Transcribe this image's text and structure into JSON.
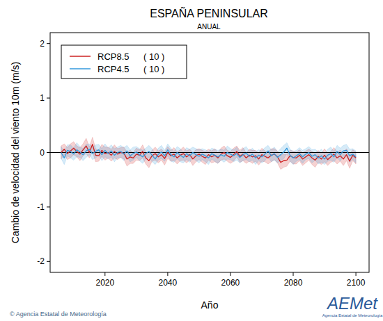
{
  "chart_data": {
    "type": "line",
    "title": "ESPAÑA PENINSULAR",
    "subtitle": "ANUAL",
    "x_label": "Año",
    "y_label": "Cambio de velocidad del viento 10m (m/s)",
    "annotations": [
      "© Agencia Estatal de Meteorología",
      "AEMet",
      "Agencia Estatal de Meteorología"
    ],
    "legend": "top-left",
    "hline": 0,
    "xlim": [
      2002.5,
      2104.2
    ],
    "ylim": [
      -2.2,
      2.2
    ],
    "xticks": [
      2020,
      2040,
      2060,
      2080,
      2100
    ],
    "yticks": [
      -2,
      -1,
      0,
      1,
      2
    ],
    "x": [
      2006,
      2007,
      2008,
      2009,
      2010,
      2011,
      2012,
      2013,
      2014,
      2015,
      2016,
      2017,
      2018,
      2019,
      2020,
      2021,
      2022,
      2023,
      2024,
      2025,
      2026,
      2027,
      2028,
      2029,
      2030,
      2031,
      2032,
      2033,
      2034,
      2035,
      2036,
      2037,
      2038,
      2039,
      2040,
      2041,
      2042,
      2043,
      2044,
      2045,
      2046,
      2047,
      2048,
      2049,
      2050,
      2051,
      2052,
      2053,
      2054,
      2055,
      2056,
      2057,
      2058,
      2059,
      2060,
      2061,
      2062,
      2063,
      2064,
      2065,
      2066,
      2067,
      2068,
      2069,
      2070,
      2071,
      2072,
      2073,
      2074,
      2075,
      2076,
      2077,
      2078,
      2079,
      2080,
      2081,
      2082,
      2083,
      2084,
      2085,
      2086,
      2087,
      2088,
      2089,
      2090,
      2091,
      2092,
      2093,
      2094,
      2095,
      2096,
      2097,
      2098,
      2099,
      2100
    ],
    "series": [
      {
        "name": "RCP8.5",
        "label": "( 10 )",
        "color": "#cc2020",
        "values": [
          0.0,
          0.06,
          -0.02,
          0.03,
          0.08,
          0.02,
          -0.03,
          0.05,
          0.12,
          0.0,
          0.15,
          -0.05,
          -0.06,
          0.04,
          -0.02,
          0.0,
          -0.05,
          0.02,
          -0.03,
          0.0,
          -0.01,
          -0.12,
          -0.08,
          -0.1,
          -0.03,
          -0.05,
          0.02,
          -0.1,
          -0.15,
          -0.06,
          -0.02,
          -0.08,
          -0.04,
          -0.11,
          0.0,
          -0.06,
          -0.03,
          -0.1,
          -0.05,
          -0.02,
          -0.08,
          -0.04,
          -0.12,
          -0.06,
          -0.03,
          -0.07,
          -0.1,
          -0.04,
          -0.08,
          -0.05,
          -0.1,
          -0.03,
          0.0,
          -0.06,
          -0.09,
          -0.04,
          0.02,
          -0.07,
          -0.03,
          -0.1,
          -0.05,
          -0.08,
          -0.06,
          -0.12,
          -0.04,
          -0.07,
          -0.1,
          -0.05,
          -0.03,
          -0.08,
          -0.18,
          -0.15,
          -0.14,
          -0.06,
          -0.09,
          -0.1,
          -0.05,
          -0.12,
          -0.08,
          -0.04,
          -0.1,
          -0.14,
          -0.07,
          -0.12,
          -0.05,
          -0.13,
          -0.08,
          -0.03,
          -0.1,
          -0.06,
          -0.12,
          -0.04,
          -0.16,
          -0.05,
          -0.1
        ],
        "error": [
          0.12,
          0.1,
          0.11,
          0.13,
          0.12,
          0.1,
          0.12,
          0.11,
          0.14,
          0.1,
          0.13,
          0.12,
          0.1,
          0.11,
          0.12,
          0.1,
          0.11,
          0.12,
          0.1,
          0.09,
          0.11,
          0.13,
          0.12,
          0.1,
          0.11,
          0.1,
          0.12,
          0.11,
          0.13,
          0.1,
          0.12,
          0.11,
          0.1,
          0.12,
          0.11,
          0.1,
          0.12,
          0.11,
          0.1,
          0.12,
          0.11,
          0.1,
          0.12,
          0.11,
          0.1,
          0.11,
          0.12,
          0.1,
          0.11,
          0.12,
          0.1,
          0.11,
          0.12,
          0.1,
          0.11,
          0.12,
          0.1,
          0.11,
          0.12,
          0.1,
          0.11,
          0.12,
          0.1,
          0.11,
          0.12,
          0.1,
          0.11,
          0.12,
          0.1,
          0.11,
          0.13,
          0.12,
          0.11,
          0.1,
          0.12,
          0.11,
          0.1,
          0.12,
          0.11,
          0.1,
          0.12,
          0.13,
          0.11,
          0.1,
          0.12,
          0.11,
          0.1,
          0.12,
          0.11,
          0.1,
          0.12,
          0.11,
          0.13,
          0.1,
          0.11
        ]
      },
      {
        "name": "RCP4.5",
        "label": "( 10 )",
        "color": "#3399dd",
        "values": [
          0.0,
          -0.1,
          0.04,
          0.02,
          -0.03,
          0.05,
          0.01,
          -0.04,
          0.03,
          0.06,
          -0.02,
          0.02,
          0.05,
          -0.04,
          0.04,
          -0.02,
          0.03,
          -0.05,
          0.0,
          0.02,
          -0.03,
          0.03,
          -0.06,
          -0.02,
          0.01,
          -0.04,
          -0.08,
          -0.02,
          0.02,
          -0.05,
          -0.12,
          -0.03,
          0.01,
          -0.06,
          0.05,
          -0.04,
          -0.08,
          0.0,
          -0.05,
          -0.09,
          -0.02,
          -0.06,
          0.0,
          -0.04,
          -0.07,
          -0.03,
          -0.06,
          -0.1,
          -0.02,
          -0.05,
          -0.08,
          -0.04,
          -0.07,
          0.0,
          -0.03,
          -0.06,
          -0.02,
          -0.09,
          -0.04,
          -0.01,
          -0.07,
          -0.03,
          -0.1,
          -0.05,
          -0.08,
          -0.03,
          0.03,
          -0.06,
          -0.02,
          -0.09,
          -0.04,
          0.01,
          0.08,
          -0.05,
          -0.1,
          -0.06,
          -0.02,
          -0.08,
          -0.03,
          0.0,
          -0.07,
          -0.04,
          -0.1,
          -0.06,
          -0.12,
          -0.05,
          -0.02,
          -0.08,
          0.02,
          -0.04,
          0.03,
          0.04,
          -0.06,
          -0.03,
          -0.08
        ],
        "error": [
          0.11,
          0.12,
          0.1,
          0.12,
          0.11,
          0.13,
          0.1,
          0.11,
          0.12,
          0.1,
          0.11,
          0.12,
          0.1,
          0.11,
          0.12,
          0.1,
          0.11,
          0.12,
          0.1,
          0.11,
          0.12,
          0.1,
          0.11,
          0.12,
          0.1,
          0.11,
          0.12,
          0.1,
          0.11,
          0.12,
          0.1,
          0.11,
          0.12,
          0.1,
          0.11,
          0.12,
          0.1,
          0.11,
          0.12,
          0.1,
          0.11,
          0.12,
          0.1,
          0.11,
          0.12,
          0.1,
          0.11,
          0.12,
          0.1,
          0.11,
          0.12,
          0.1,
          0.11,
          0.12,
          0.1,
          0.11,
          0.12,
          0.1,
          0.11,
          0.12,
          0.1,
          0.11,
          0.12,
          0.1,
          0.11,
          0.12,
          0.1,
          0.11,
          0.12,
          0.1,
          0.11,
          0.12,
          0.1,
          0.11,
          0.12,
          0.1,
          0.11,
          0.12,
          0.1,
          0.11,
          0.12,
          0.1,
          0.11,
          0.12,
          0.1,
          0.11,
          0.12,
          0.1,
          0.11,
          0.12,
          0.1,
          0.11,
          0.12,
          0.1,
          0.11
        ]
      }
    ]
  }
}
